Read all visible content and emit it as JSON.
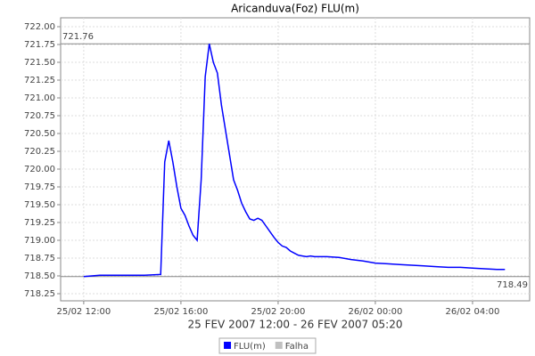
{
  "chart_data": {
    "type": "line",
    "title": "Aricanduva(Foz) FLU(m)",
    "subtitle": "25 FEV 2007 12:00 - 26 FEV 2007 05:20",
    "x": [
      "25/02 12:00",
      "25/02 12:20",
      "25/02 12:40",
      "25/02 13:30",
      "25/02 14:30",
      "25/02 15:10",
      "25/02 15:20",
      "25/02 15:30",
      "25/02 15:40",
      "25/02 15:50",
      "25/02 16:00",
      "25/02 16:10",
      "25/02 16:20",
      "25/02 16:30",
      "25/02 16:40",
      "25/02 16:50",
      "25/02 17:00",
      "25/02 17:10",
      "25/02 17:20",
      "25/02 17:30",
      "25/02 17:40",
      "25/02 17:50",
      "25/02 18:00",
      "25/02 18:10",
      "25/02 18:20",
      "25/02 18:30",
      "25/02 18:40",
      "25/02 18:50",
      "25/02 19:00",
      "25/02 19:10",
      "25/02 19:20",
      "25/02 19:30",
      "25/02 19:40",
      "25/02 19:50",
      "25/02 20:00",
      "25/02 20:10",
      "25/02 20:20",
      "25/02 20:30",
      "25/02 20:40",
      "25/02 20:50",
      "25/02 21:00",
      "25/02 21:10",
      "25/02 21:20",
      "25/02 21:30",
      "25/02 22:00",
      "25/02 22:30",
      "25/02 23:00",
      "25/02 23:30",
      "26/02 00:00",
      "26/02 00:30",
      "26/02 01:00",
      "26/02 01:30",
      "26/02 02:00",
      "26/02 02:30",
      "26/02 03:00",
      "26/02 03:30",
      "26/02 04:00",
      "26/02 04:30",
      "26/02 05:00",
      "26/02 05:20"
    ],
    "series": [
      {
        "name": "FLU(m)",
        "color": "#0000ff",
        "values": [
          718.49,
          718.5,
          718.51,
          718.51,
          718.51,
          718.52,
          720.1,
          720.4,
          720.1,
          719.75,
          719.45,
          719.35,
          719.2,
          719.07,
          719.0,
          719.85,
          721.3,
          721.76,
          721.5,
          721.35,
          720.9,
          720.55,
          720.2,
          719.85,
          719.7,
          719.52,
          719.4,
          719.3,
          719.28,
          719.31,
          719.28,
          719.2,
          719.12,
          719.04,
          718.97,
          718.92,
          718.9,
          718.85,
          718.82,
          718.79,
          718.78,
          718.77,
          718.78,
          718.77,
          718.77,
          718.76,
          718.73,
          718.71,
          718.68,
          718.67,
          718.66,
          718.65,
          718.64,
          718.63,
          718.62,
          718.62,
          718.61,
          718.6,
          718.59,
          718.59
        ]
      }
    ],
    "legend": [
      {
        "name": "FLU(m)",
        "color": "#0000ff"
      },
      {
        "name": "Falha",
        "color": "#c0c0c0"
      }
    ],
    "reference_lines": [
      721.76,
      718.49
    ],
    "xlim": [
      "25/02 11:03",
      "26/02 06:21"
    ],
    "xticks": [
      "25/02 12:00",
      "25/02 16:00",
      "25/02 20:00",
      "26/02 00:00",
      "26/02 04:00"
    ],
    "ylim": [
      718.15,
      722.125
    ],
    "yticks": [
      718.25,
      {
        "value": 718.5,
        "label": "718.50"
      },
      718.75,
      {
        "value": 719,
        "label": "719.00"
      },
      719.25,
      {
        "value": 719.5,
        "label": "719.50"
      },
      719.75,
      {
        "value": 720,
        "label": "720.00"
      },
      720.25,
      {
        "value": 720.5,
        "label": "720.50"
      },
      720.75,
      {
        "value": 721,
        "label": "721.00"
      },
      721.25,
      {
        "value": 721.5,
        "label": "721.50"
      },
      721.75,
      {
        "value": 722,
        "label": "722.00"
      }
    ],
    "grid": true
  }
}
